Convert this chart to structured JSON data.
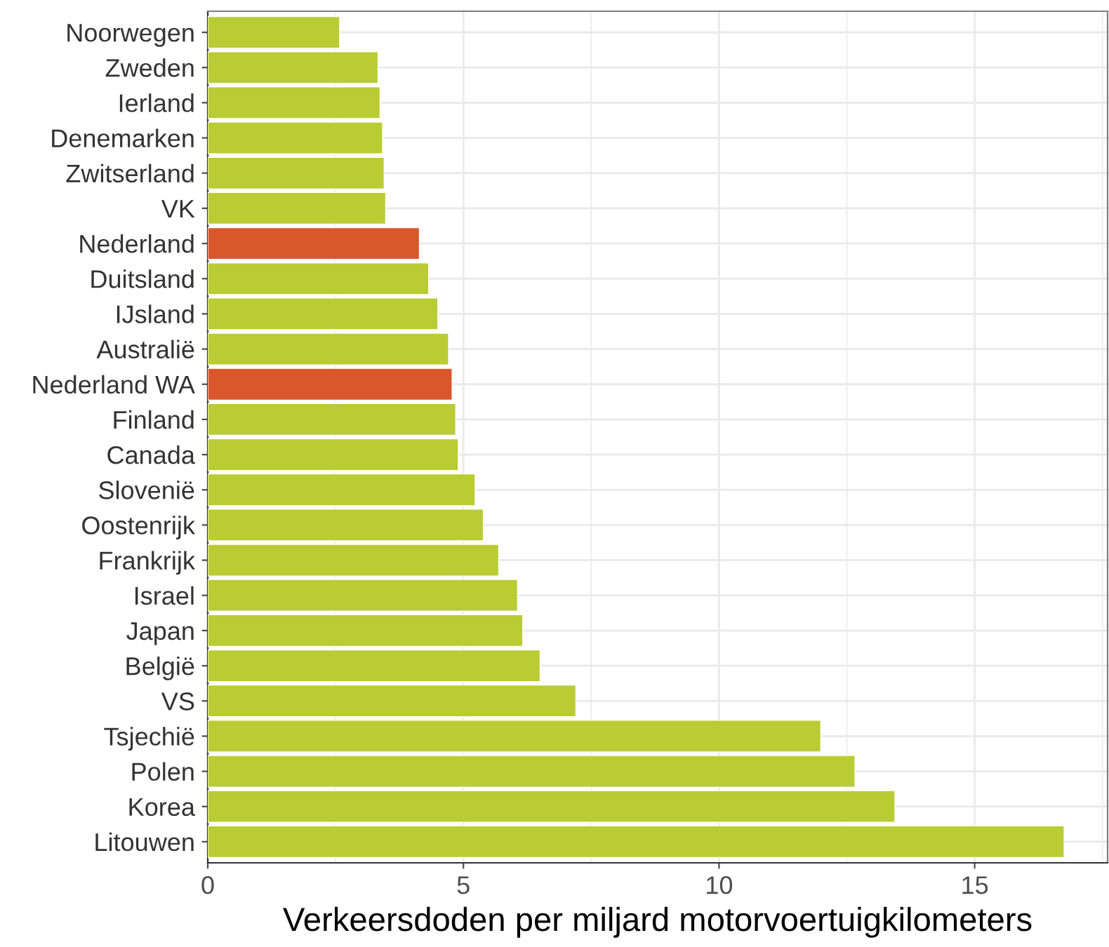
{
  "chart_data": {
    "type": "bar",
    "orientation": "horizontal",
    "xlabel": "Verkeersdoden per miljard motorvoertuigkilometers",
    "categories": [
      "Noorwegen",
      "Zweden",
      "Ierland",
      "Denemarken",
      "Zwitserland",
      "VK",
      "Nederland",
      "Duitsland",
      "IJsland",
      "Australië",
      "Nederland WA",
      "Finland",
      "Canada",
      "Slovenië",
      "Oostenrijk",
      "Frankrijk",
      "Israel",
      "Japan",
      "België",
      "VS",
      "Tsjechië",
      "Polen",
      "Korea",
      "Litouwen"
    ],
    "values": [
      2.58,
      3.33,
      3.37,
      3.42,
      3.45,
      3.48,
      4.14,
      4.32,
      4.5,
      4.71,
      4.78,
      4.85,
      4.9,
      5.23,
      5.39,
      5.69,
      6.06,
      6.16,
      6.5,
      7.2,
      11.99,
      12.66,
      13.44,
      16.75
    ],
    "colors": [
      "#b9cc33",
      "#b9cc33",
      "#b9cc33",
      "#b9cc33",
      "#b9cc33",
      "#b9cc33",
      "#d9572b",
      "#b9cc33",
      "#b9cc33",
      "#b9cc33",
      "#d9572b",
      "#b9cc33",
      "#b9cc33",
      "#b9cc33",
      "#b9cc33",
      "#b9cc33",
      "#b9cc33",
      "#b9cc33",
      "#b9cc33",
      "#b9cc33",
      "#b9cc33",
      "#b9cc33",
      "#b9cc33",
      "#b9cc33"
    ],
    "xlim": [
      0,
      17.6
    ],
    "xticks": [
      0,
      5,
      10,
      15
    ],
    "grid": true
  }
}
